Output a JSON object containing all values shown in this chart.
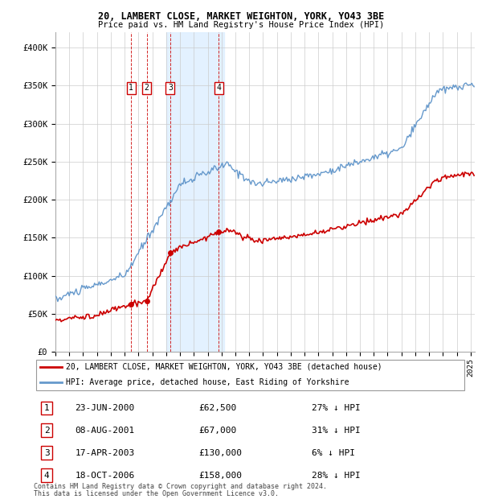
{
  "title1": "20, LAMBERT CLOSE, MARKET WEIGHTON, YORK, YO43 3BE",
  "title2": "Price paid vs. HM Land Registry's House Price Index (HPI)",
  "ylabel_ticks": [
    "£0",
    "£50K",
    "£100K",
    "£150K",
    "£200K",
    "£250K",
    "£300K",
    "£350K",
    "£400K"
  ],
  "ytick_values": [
    0,
    50000,
    100000,
    150000,
    200000,
    250000,
    300000,
    350000,
    400000
  ],
  "ylim": [
    0,
    420000
  ],
  "xlim_start": 1995.0,
  "xlim_end": 2025.3,
  "hatch_start": 2024.0,
  "sales": [
    {
      "num": 1,
      "date": "23-JUN-2000",
      "year": 2000.47,
      "price": 62500,
      "pct": "27%",
      "dir": "↓"
    },
    {
      "num": 2,
      "date": "08-AUG-2001",
      "year": 2001.6,
      "price": 67000,
      "pct": "31%",
      "dir": "↓"
    },
    {
      "num": 3,
      "date": "17-APR-2003",
      "year": 2003.29,
      "price": 130000,
      "pct": "6%",
      "dir": "↓"
    },
    {
      "num": 4,
      "date": "18-OCT-2006",
      "year": 2006.8,
      "price": 158000,
      "pct": "28%",
      "dir": "↓"
    }
  ],
  "shaded_region": [
    2003.0,
    2007.2
  ],
  "legend_line1": "20, LAMBERT CLOSE, MARKET WEIGHTON, YORK, YO43 3BE (detached house)",
  "legend_line2": "HPI: Average price, detached house, East Riding of Yorkshire",
  "footnote1": "Contains HM Land Registry data © Crown copyright and database right 2024.",
  "footnote2": "This data is licensed under the Open Government Licence v3.0.",
  "hpi_color": "#6699cc",
  "price_color": "#cc0000",
  "table_rows": [
    [
      "1",
      "23-JUN-2000",
      "£62,500",
      "27% ↓ HPI"
    ],
    [
      "2",
      "08-AUG-2001",
      "£67,000",
      "31% ↓ HPI"
    ],
    [
      "3",
      "17-APR-2003",
      "£130,000",
      "6% ↓ HPI"
    ],
    [
      "4",
      "18-OCT-2006",
      "£158,000",
      "28% ↓ HPI"
    ]
  ]
}
